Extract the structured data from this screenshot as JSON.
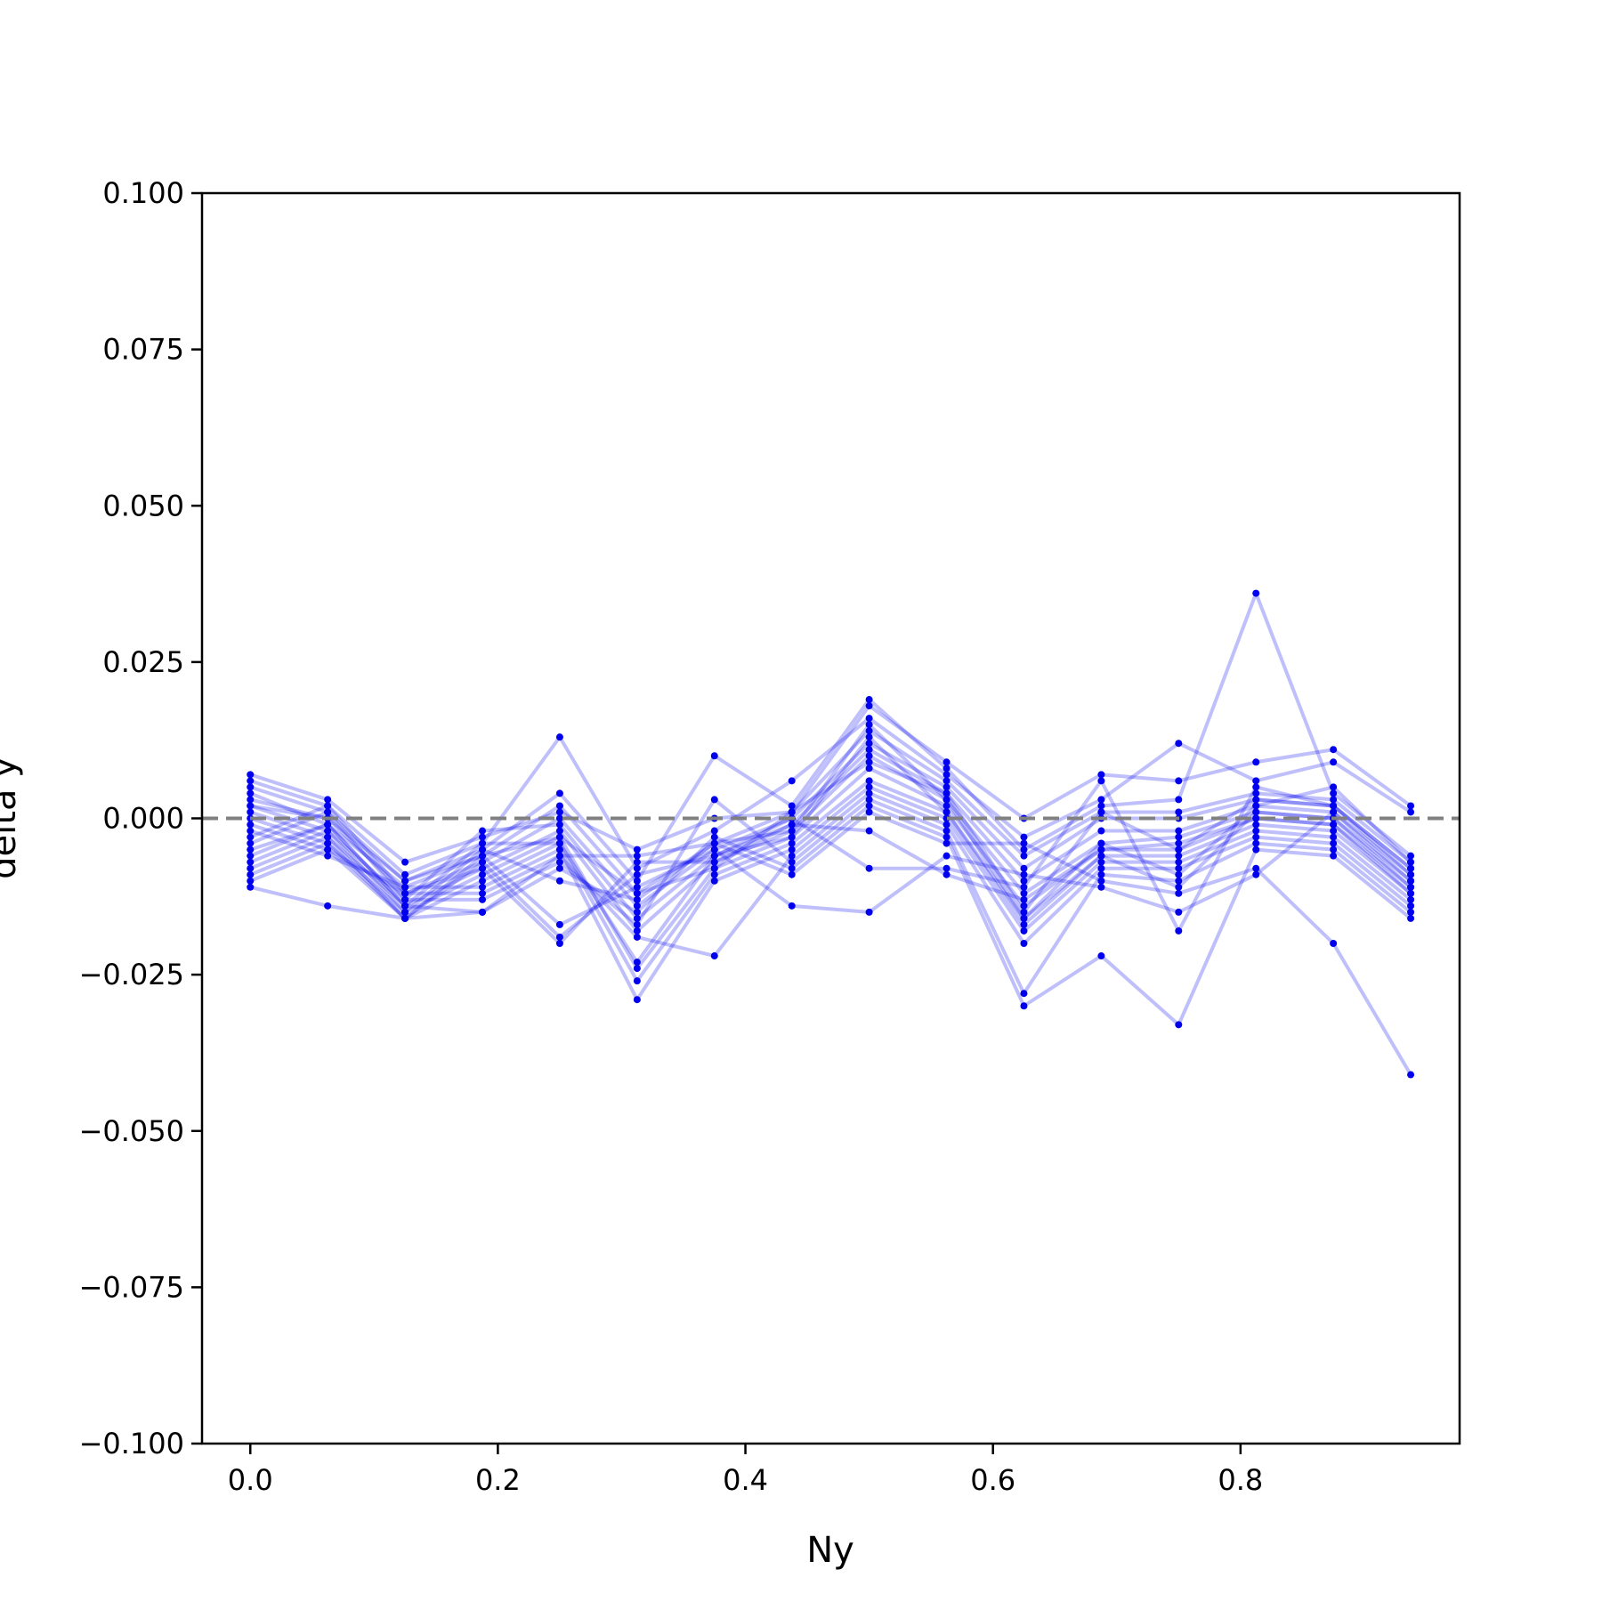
{
  "chart_data": {
    "type": "line",
    "xlabel": "Ny",
    "ylabel": "delta y",
    "xlim": [
      -0.039,
      0.977
    ],
    "ylim": [
      -0.1,
      0.1
    ],
    "x_ticks": [
      0.0,
      0.2,
      0.4,
      0.6,
      0.8
    ],
    "x_tick_labels": [
      "0.0",
      "0.2",
      "0.4",
      "0.6",
      "0.8"
    ],
    "y_ticks": [
      -0.1,
      -0.075,
      -0.05,
      -0.025,
      0.0,
      0.025,
      0.05,
      0.075,
      0.1
    ],
    "y_tick_labels": [
      "−0.100",
      "−0.075",
      "−0.050",
      "−0.025",
      "0.000",
      "0.025",
      "0.050",
      "0.075",
      "0.100"
    ],
    "reference_line": {
      "y": 0.0,
      "style": "dashed",
      "color": "#808080"
    },
    "grid": false,
    "series_color": "#0000ee",
    "x": [
      0.0,
      0.0625,
      0.125,
      0.1875,
      0.25,
      0.3125,
      0.375,
      0.4375,
      0.5,
      0.5625,
      0.625,
      0.6875,
      0.75,
      0.8125,
      0.875,
      0.9375
    ],
    "series": [
      {
        "values": [
          0.007,
          0.003,
          -0.007,
          -0.003,
          0.001,
          -0.005,
          0.0,
          0.001,
          0.018,
          0.009,
          0.0,
          0.007,
          0.006,
          0.009,
          0.011,
          0.002
        ]
      },
      {
        "values": [
          0.006,
          0.002,
          -0.009,
          -0.004,
          0.013,
          -0.008,
          -0.002,
          0.006,
          0.016,
          0.007,
          -0.003,
          0.003,
          0.012,
          0.006,
          0.009,
          0.001
        ]
      },
      {
        "values": [
          0.005,
          0.001,
          -0.01,
          -0.005,
          0.004,
          -0.01,
          0.01,
          0.002,
          0.019,
          0.008,
          -0.005,
          0.002,
          0.003,
          0.036,
          0.004,
          -0.006
        ]
      },
      {
        "values": [
          0.004,
          -0.001,
          -0.011,
          -0.006,
          0.002,
          -0.012,
          -0.004,
          0.001,
          0.014,
          0.006,
          -0.006,
          0.001,
          0.001,
          0.004,
          0.003,
          -0.007
        ]
      },
      {
        "values": [
          0.003,
          0.0,
          -0.012,
          -0.007,
          0.0,
          -0.014,
          -0.005,
          0.0,
          0.012,
          0.005,
          -0.008,
          0.0,
          0.0,
          0.003,
          0.002,
          -0.008
        ]
      },
      {
        "values": [
          0.002,
          -0.002,
          -0.013,
          -0.002,
          -0.001,
          -0.016,
          -0.006,
          -0.001,
          0.011,
          0.004,
          -0.01,
          -0.002,
          -0.002,
          0.002,
          0.001,
          -0.009
        ]
      },
      {
        "values": [
          0.001,
          -0.003,
          -0.014,
          -0.008,
          -0.002,
          -0.018,
          -0.007,
          -0.002,
          0.01,
          0.003,
          -0.012,
          -0.004,
          -0.003,
          0.001,
          0.0,
          -0.01
        ]
      },
      {
        "values": [
          0.0,
          -0.004,
          -0.015,
          -0.009,
          -0.003,
          -0.024,
          -0.008,
          -0.003,
          0.008,
          0.002,
          -0.014,
          -0.005,
          -0.005,
          0.0,
          -0.001,
          -0.011
        ]
      },
      {
        "values": [
          -0.001,
          -0.005,
          -0.016,
          -0.01,
          -0.004,
          -0.026,
          -0.009,
          -0.004,
          0.006,
          0.001,
          -0.016,
          -0.006,
          -0.006,
          -0.001,
          -0.002,
          -0.012
        ]
      },
      {
        "values": [
          -0.002,
          -0.006,
          -0.011,
          -0.011,
          -0.005,
          -0.029,
          -0.01,
          -0.005,
          0.005,
          0.0,
          -0.018,
          -0.007,
          -0.007,
          -0.002,
          -0.003,
          -0.013
        ]
      },
      {
        "values": [
          -0.003,
          0.002,
          -0.012,
          -0.012,
          -0.006,
          -0.019,
          -0.022,
          -0.006,
          0.004,
          -0.001,
          -0.02,
          -0.008,
          -0.008,
          -0.003,
          -0.004,
          -0.014
        ]
      },
      {
        "values": [
          -0.004,
          0.001,
          -0.013,
          -0.013,
          -0.007,
          -0.017,
          0.003,
          -0.007,
          0.003,
          -0.002,
          -0.028,
          -0.009,
          -0.01,
          -0.004,
          -0.005,
          -0.015
        ]
      },
      {
        "values": [
          -0.005,
          -0.001,
          -0.014,
          -0.015,
          -0.008,
          -0.015,
          -0.003,
          -0.008,
          0.002,
          -0.003,
          -0.03,
          -0.022,
          -0.033,
          -0.005,
          -0.006,
          -0.016
        ]
      },
      {
        "values": [
          -0.007,
          -0.002,
          -0.015,
          -0.005,
          -0.01,
          -0.013,
          -0.004,
          -0.009,
          0.001,
          -0.004,
          -0.004,
          -0.01,
          -0.012,
          -0.008,
          -0.02,
          -0.041
        ]
      },
      {
        "values": [
          -0.008,
          -0.003,
          -0.016,
          -0.006,
          -0.017,
          -0.011,
          -0.005,
          -0.014,
          -0.015,
          -0.006,
          -0.009,
          -0.011,
          -0.015,
          -0.009,
          0.001,
          -0.01
        ]
      },
      {
        "values": [
          -0.009,
          -0.004,
          -0.016,
          -0.007,
          -0.019,
          -0.009,
          -0.006,
          0.0,
          -0.008,
          -0.008,
          -0.011,
          0.006,
          -0.018,
          0.005,
          0.002,
          -0.008
        ]
      },
      {
        "values": [
          -0.01,
          -0.005,
          -0.012,
          -0.008,
          -0.02,
          -0.007,
          -0.007,
          -0.001,
          -0.002,
          -0.009,
          -0.013,
          -0.005,
          -0.004,
          0.0,
          -0.001,
          -0.012
        ]
      },
      {
        "values": [
          -0.011,
          -0.014,
          -0.016,
          -0.015,
          -0.006,
          -0.006,
          -0.004,
          -0.002,
          0.015,
          0.003,
          -0.016,
          -0.004,
          -0.009,
          0.002,
          0.005,
          -0.007
        ]
      },
      {
        "values": [
          -0.006,
          -0.001,
          -0.014,
          -0.004,
          -0.004,
          -0.023,
          -0.006,
          -0.003,
          0.013,
          0.001,
          -0.017,
          -0.006,
          -0.011,
          0.001,
          0.0,
          -0.011
        ]
      },
      {
        "values": [
          0.002,
          0.0,
          -0.01,
          -0.006,
          -0.003,
          -0.012,
          -0.008,
          0.001,
          0.009,
          0.004,
          -0.015,
          0.001,
          -0.005,
          0.003,
          0.002,
          -0.009
        ]
      }
    ]
  }
}
